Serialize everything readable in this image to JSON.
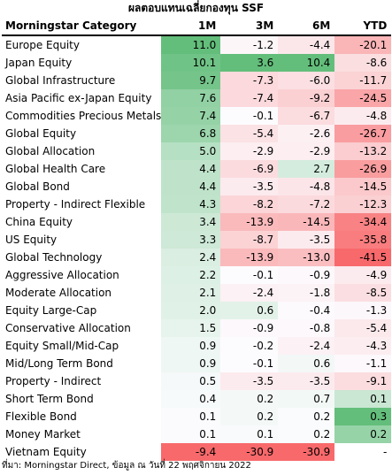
{
  "title": "ผลตอบแทนเฉลี่ยกองทุน SSF",
  "source": "ที่มา: Morningstar Direct, ข้อมูล ณ วันที่ 22 พฤศจิกายน 2022",
  "colors": {
    "positive": "#63be7b",
    "negative": "#f8696b",
    "neutral": "#fcfcff"
  },
  "chart_data": {
    "type": "table",
    "columns": [
      "Morningstar Category",
      "1M",
      "3M",
      "6M",
      "YTD"
    ],
    "rows": [
      {
        "category": "Europe Equity",
        "values": [
          11.0,
          -1.2,
          -4.4,
          -20.1
        ],
        "labels": [
          "11.0",
          "-1.2",
          "-4.4",
          "-20.1"
        ]
      },
      {
        "category": "Japan Equity",
        "values": [
          10.1,
          3.6,
          10.4,
          -8.6
        ],
        "labels": [
          "10.1",
          "3.6",
          "10.4",
          "-8.6"
        ]
      },
      {
        "category": "Global Infrastructure",
        "values": [
          9.7,
          -7.3,
          -6.0,
          -11.7
        ],
        "labels": [
          "9.7",
          "-7.3",
          "-6.0",
          "-11.7"
        ]
      },
      {
        "category": "Asia Pacific ex-Japan Equity",
        "values": [
          7.6,
          -7.4,
          -9.2,
          -24.5
        ],
        "labels": [
          "7.6",
          "-7.4",
          "-9.2",
          "-24.5"
        ]
      },
      {
        "category": "Commodities Precious Metals",
        "values": [
          7.4,
          -0.1,
          -6.7,
          -4.8
        ],
        "labels": [
          "7.4",
          "-0.1",
          "-6.7",
          "-4.8"
        ]
      },
      {
        "category": "Global Equity",
        "values": [
          6.8,
          -5.4,
          -2.6,
          -26.7
        ],
        "labels": [
          "6.8",
          "-5.4",
          "-2.6",
          "-26.7"
        ]
      },
      {
        "category": "Global Allocation",
        "values": [
          5.0,
          -2.9,
          -2.9,
          -13.2
        ],
        "labels": [
          "5.0",
          "-2.9",
          "-2.9",
          "-13.2"
        ]
      },
      {
        "category": "Global Health Care",
        "values": [
          4.4,
          -6.9,
          2.7,
          -26.9
        ],
        "labels": [
          "4.4",
          "-6.9",
          "2.7",
          "-26.9"
        ]
      },
      {
        "category": "Global Bond",
        "values": [
          4.4,
          -3.5,
          -4.8,
          -14.5
        ],
        "labels": [
          "4.4",
          "-3.5",
          "-4.8",
          "-14.5"
        ]
      },
      {
        "category": "Property - Indirect Flexible",
        "values": [
          4.3,
          -8.2,
          -7.2,
          -12.3
        ],
        "labels": [
          "4.3",
          "-8.2",
          "-7.2",
          "-12.3"
        ]
      },
      {
        "category": "China Equity",
        "values": [
          3.4,
          -13.9,
          -14.5,
          -34.4
        ],
        "labels": [
          "3.4",
          "-13.9",
          "-14.5",
          "-34.4"
        ]
      },
      {
        "category": "US Equity",
        "values": [
          3.3,
          -8.7,
          -3.5,
          -35.8
        ],
        "labels": [
          "3.3",
          "-8.7",
          "-3.5",
          "-35.8"
        ]
      },
      {
        "category": "Global Technology",
        "values": [
          2.4,
          -13.9,
          -13.0,
          -41.5
        ],
        "labels": [
          "2.4",
          "-13.9",
          "-13.0",
          "-41.5"
        ]
      },
      {
        "category": "Aggressive Allocation",
        "values": [
          2.2,
          -0.1,
          -0.9,
          -4.9
        ],
        "labels": [
          "2.2",
          "-0.1",
          "-0.9",
          "-4.9"
        ]
      },
      {
        "category": "Moderate Allocation",
        "values": [
          2.1,
          -2.4,
          -1.8,
          -8.5
        ],
        "labels": [
          "2.1",
          "-2.4",
          "-1.8",
          "-8.5"
        ]
      },
      {
        "category": "Equity Large-Cap",
        "values": [
          2.0,
          0.6,
          -0.4,
          -1.3
        ],
        "labels": [
          "2.0",
          "0.6",
          "-0.4",
          "-1.3"
        ]
      },
      {
        "category": "Conservative Allocation",
        "values": [
          1.5,
          -0.9,
          -0.8,
          -5.4
        ],
        "labels": [
          "1.5",
          "-0.9",
          "-0.8",
          "-5.4"
        ]
      },
      {
        "category": "Equity Small/Mid-Cap",
        "values": [
          0.9,
          -0.2,
          -2.4,
          -4.3
        ],
        "labels": [
          "0.9",
          "-0.2",
          "-2.4",
          "-4.3"
        ]
      },
      {
        "category": "Mid/Long Term Bond",
        "values": [
          0.9,
          -0.1,
          0.6,
          -1.1
        ],
        "labels": [
          "0.9",
          "-0.1",
          "0.6",
          "-1.1"
        ]
      },
      {
        "category": "Property - Indirect",
        "values": [
          0.5,
          -3.5,
          -3.5,
          -9.1
        ],
        "labels": [
          "0.5",
          "-3.5",
          "-3.5",
          "-9.1"
        ]
      },
      {
        "category": "Short Term Bond",
        "values": [
          0.4,
          0.2,
          0.7,
          0.1
        ],
        "labels": [
          "0.4",
          "0.2",
          "0.7",
          "0.1"
        ]
      },
      {
        "category": "Flexible Bond",
        "values": [
          0.1,
          0.2,
          0.2,
          0.3
        ],
        "labels": [
          "0.1",
          "0.2",
          "0.2",
          "0.3"
        ]
      },
      {
        "category": "Money Market",
        "values": [
          0.1,
          0.1,
          0.2,
          0.2
        ],
        "labels": [
          "0.1",
          "0.1",
          "0.2",
          "0.2"
        ]
      },
      {
        "category": "Vietnam Equity",
        "values": [
          -9.4,
          -30.9,
          -30.9,
          null
        ],
        "labels": [
          "-9.4",
          "-30.9",
          "-30.9",
          "-"
        ]
      }
    ]
  }
}
